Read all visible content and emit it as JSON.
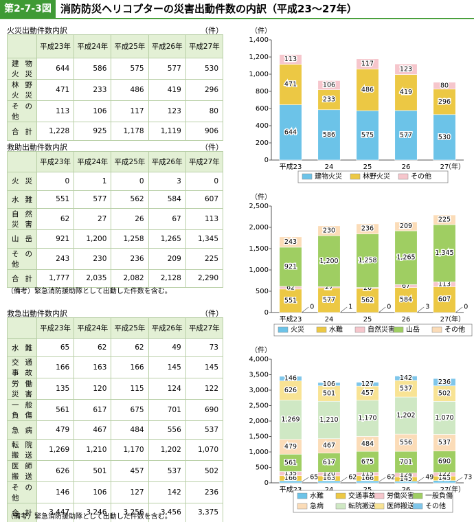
{
  "header": {
    "figure_number": "第2-7-3図",
    "title": "消防防災ヘリコプターの災害出動件数の内訳（平成23～27年）"
  },
  "tables": [
    {
      "title": "火災出動件数内訳",
      "unit": "（件）",
      "columns": [
        "平成23年",
        "平成24年",
        "平成25年",
        "平成26年",
        "平成27年"
      ],
      "rows": [
        {
          "label": "建物火災",
          "cells": [
            "644",
            "586",
            "575",
            "577",
            "530"
          ]
        },
        {
          "label": "林野火災",
          "cells": [
            "471",
            "233",
            "486",
            "419",
            "296"
          ]
        },
        {
          "label": "その他",
          "cells": [
            "113",
            "106",
            "117",
            "123",
            "80"
          ]
        },
        {
          "label": "合計",
          "cells": [
            "1,228",
            "925",
            "1,178",
            "1,119",
            "906"
          ]
        }
      ]
    },
    {
      "title": "救助出動件数内訳",
      "unit": "（件）",
      "columns": [
        "平成23年",
        "平成24年",
        "平成25年",
        "平成26年",
        "平成27年"
      ],
      "rows": [
        {
          "label": "火災",
          "cells": [
            "0",
            "1",
            "0",
            "3",
            "0"
          ]
        },
        {
          "label": "水難",
          "cells": [
            "551",
            "577",
            "562",
            "584",
            "607"
          ]
        },
        {
          "label": "自然災害",
          "cells": [
            "62",
            "27",
            "26",
            "67",
            "113"
          ]
        },
        {
          "label": "山岳",
          "cells": [
            "921",
            "1,200",
            "1,258",
            "1,265",
            "1,345"
          ]
        },
        {
          "label": "その他",
          "cells": [
            "243",
            "230",
            "236",
            "209",
            "225"
          ]
        },
        {
          "label": "合計",
          "cells": [
            "1,777",
            "2,035",
            "2,082",
            "2,128",
            "2,290"
          ]
        }
      ],
      "note": "（備考）緊急消防援助隊として出動した件数を含む。"
    },
    {
      "title": "救急出動件数内訳",
      "unit": "（件）",
      "columns": [
        "平成23年",
        "平成24年",
        "平成25年",
        "平成26年",
        "平成27年"
      ],
      "rows": [
        {
          "label": "水難",
          "cells": [
            "65",
            "62",
            "62",
            "49",
            "73"
          ]
        },
        {
          "label": "交通事故",
          "cells": [
            "166",
            "163",
            "166",
            "145",
            "145"
          ]
        },
        {
          "label": "労働災害",
          "cells": [
            "135",
            "120",
            "115",
            "124",
            "122"
          ]
        },
        {
          "label": "一般負傷",
          "cells": [
            "561",
            "617",
            "675",
            "701",
            "690"
          ]
        },
        {
          "label": "急病",
          "cells": [
            "479",
            "467",
            "484",
            "556",
            "537"
          ]
        },
        {
          "label": "転院搬送",
          "cells": [
            "1,269",
            "1,210",
            "1,170",
            "1,202",
            "1,070"
          ]
        },
        {
          "label": "医師搬送",
          "cells": [
            "626",
            "501",
            "457",
            "537",
            "502"
          ]
        },
        {
          "label": "その他",
          "cells": [
            "146",
            "106",
            "127",
            "142",
            "236"
          ]
        },
        {
          "label": "合計",
          "cells": [
            "3,447",
            "3,246",
            "3,256",
            "3,456",
            "3,375"
          ]
        }
      ],
      "note": "（備考）緊急消防援助隊として出動した件数を含む。"
    }
  ],
  "chart_data": [
    {
      "type": "bar",
      "stacked": true,
      "ylabel": "（件）",
      "xlabel": "（年）",
      "categories": [
        "平成23",
        "24",
        "25",
        "26",
        "27"
      ],
      "ylim": [
        0,
        1400
      ],
      "yticks": [
        0,
        200,
        400,
        600,
        800,
        {
          "value": 1000,
          "label": "1,000"
        },
        {
          "value": 1200,
          "label": "1,200"
        },
        {
          "value": 1400,
          "label": "1,400"
        }
      ],
      "series": [
        {
          "name": "建物火災",
          "color": "#6cc3e8",
          "values": [
            644,
            586,
            575,
            577,
            530
          ]
        },
        {
          "name": "林野火災",
          "color": "#ecc844",
          "values": [
            471,
            233,
            486,
            419,
            296
          ]
        },
        {
          "name": "その他",
          "color": "#f6c6cc",
          "values": [
            113,
            106,
            117,
            123,
            80
          ]
        }
      ]
    },
    {
      "type": "bar",
      "stacked": true,
      "ylabel": "（件）",
      "xlabel": "（年）",
      "categories": [
        "平成23",
        "24",
        "25",
        "26",
        "27"
      ],
      "ylim": [
        0,
        2500
      ],
      "yticks": [
        0,
        500,
        {
          "value": 1000,
          "label": "1,000"
        },
        {
          "value": 1500,
          "label": "1,500"
        },
        {
          "value": 2000,
          "label": "2,000"
        },
        {
          "value": 2500,
          "label": "2,500"
        }
      ],
      "series": [
        {
          "name": "火災",
          "color": "#6cc3e8",
          "values": [
            0,
            1,
            0,
            3,
            0
          ]
        },
        {
          "name": "水難",
          "color": "#ecc844",
          "values": [
            551,
            577,
            562,
            584,
            607
          ]
        },
        {
          "name": "自然災害",
          "color": "#f6c6cc",
          "values": [
            62,
            27,
            26,
            67,
            113
          ]
        },
        {
          "name": "山岳",
          "color": "#9fce62",
          "values": [
            921,
            1200,
            1258,
            1265,
            1345
          ],
          "value_labels": [
            "921",
            "1,200",
            "1,258",
            "1,265",
            "1,345"
          ]
        },
        {
          "name": "その他",
          "color": "#fbdcb8",
          "values": [
            243,
            230,
            236,
            209,
            225
          ]
        }
      ]
    },
    {
      "type": "bar",
      "stacked": true,
      "ylabel": "（件）",
      "xlabel": "（年）",
      "categories": [
        "平成23",
        "24",
        "25",
        "26",
        "27"
      ],
      "ylim": [
        0,
        4000
      ],
      "yticks": [
        0,
        500,
        {
          "value": 1000,
          "label": "1,000"
        },
        {
          "value": 1500,
          "label": "1,500"
        },
        {
          "value": 2000,
          "label": "2,000"
        },
        {
          "value": 2500,
          "label": "2,500"
        },
        {
          "value": 3000,
          "label": "3,000"
        },
        {
          "value": 3500,
          "label": "3,500"
        },
        {
          "value": 4000,
          "label": "4,000"
        }
      ],
      "series": [
        {
          "name": "水難",
          "color": "#6cc3e8",
          "values": [
            65,
            62,
            62,
            49,
            73
          ]
        },
        {
          "name": "交通事故",
          "color": "#ecc844",
          "values": [
            166,
            163,
            166,
            145,
            145
          ]
        },
        {
          "name": "労働災害",
          "color": "#f6c6cc",
          "values": [
            135,
            120,
            115,
            124,
            122
          ]
        },
        {
          "name": "一般負傷",
          "color": "#9fce62",
          "values": [
            561,
            617,
            675,
            701,
            690
          ]
        },
        {
          "name": "急病",
          "color": "#fbdcb8",
          "values": [
            479,
            467,
            484,
            556,
            537
          ]
        },
        {
          "name": "転院搬送",
          "color": "#cfe8c4",
          "values": [
            1269,
            1210,
            1170,
            1202,
            1070
          ],
          "value_labels": [
            "1,269",
            "1,210",
            "1,170",
            "1,202",
            "1,070"
          ]
        },
        {
          "name": "医師搬送",
          "color": "#f8e394",
          "values": [
            626,
            501,
            457,
            537,
            502
          ]
        },
        {
          "name": "その他",
          "color": "#7fc6ea",
          "values": [
            146,
            106,
            127,
            142,
            236
          ]
        }
      ]
    }
  ]
}
